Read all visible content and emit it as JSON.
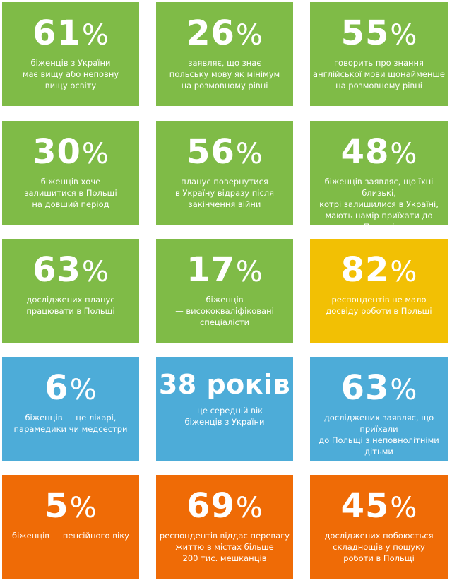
{
  "tiles": [
    {
      "number": "61",
      "suffix": "%",
      "text": "біженців з України\nмає вищу або неповну\nвищу освіту",
      "color": "#7fbb47"
    },
    {
      "number": "26",
      "suffix": "%",
      "text": "заявляє, що знає\nпольську мову як мінімум\nна розмовному рівні",
      "color": "#7fbb47"
    },
    {
      "number": "55",
      "suffix": "%",
      "text": "говорить про знання\nанглійської мови щонайменше\nна розмовному рівні",
      "color": "#7fbb47"
    },
    {
      "number": "30",
      "suffix": "%",
      "text": "біженців хоче\nзалишитися в Польщі\nна довший період",
      "color": "#7fbb47"
    },
    {
      "number": "56",
      "suffix": "%",
      "text": "планує повернутися\nв Україну відразу після\nзакінчення війни",
      "color": "#7fbb47"
    },
    {
      "number": "48",
      "suffix": "%",
      "text": "біженців заявляє, що їхні близькі,\nкотрі залишилися в Україні,\nмають намір приїхати до Польщі",
      "color": "#7fbb47"
    },
    {
      "number": "63",
      "suffix": "%",
      "text": "досліджених планує\nпрацювати в Польщі",
      "color": "#7fbb47"
    },
    {
      "number": "17",
      "suffix": "%",
      "text": "біженців\n— висококваліфіковані\nспеціалісти",
      "color": "#7fbb47"
    },
    {
      "number": "82",
      "suffix": "%",
      "text": "респондентів не мало\nдосвіду роботи в Польщі",
      "color": "#f2c004"
    },
    {
      "number": "6",
      "suffix": "%",
      "text": "біженців — це лікарі,\nпарамедики чи медсестри",
      "color": "#4dacd8"
    },
    {
      "number": "38 років",
      "suffix": "",
      "text": "— це середній вік\nбіженців з України",
      "color": "#4dacd8"
    },
    {
      "number": "63",
      "suffix": "%",
      "text": "досліджених заявляє, що приїхали\nдо Польщі з неповнолітніми\nдітьми",
      "color": "#4dacd8"
    },
    {
      "number": "5",
      "suffix": "%",
      "text": "біженців — пенсійного віку",
      "color": "#ef6b06"
    },
    {
      "number": "69",
      "suffix": "%",
      "text": "респондентів віддає перевагу\nжиттю в містах більше\n200 тис. мешканців",
      "color": "#ef6b06"
    },
    {
      "number": "45",
      "suffix": "%",
      "text": "досліджених побоюється\nскладнощів у пошуку\nроботи в Польщі",
      "color": "#ef6b06"
    }
  ]
}
